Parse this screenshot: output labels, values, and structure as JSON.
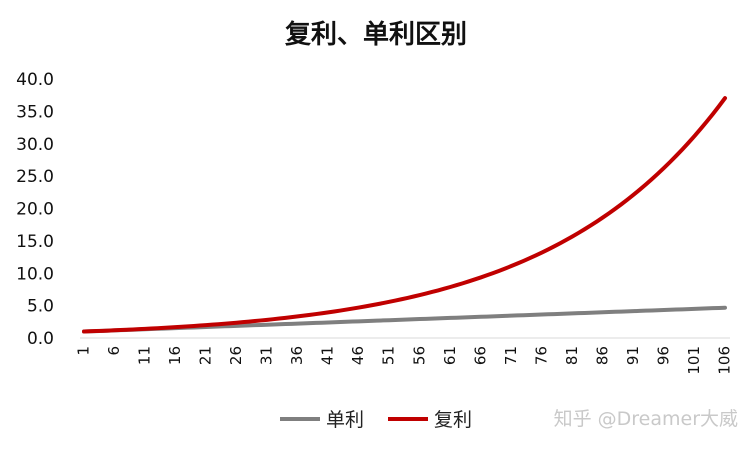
{
  "chart_data": {
    "type": "line",
    "title": "复利、单利区别",
    "xlabel": "",
    "ylabel": "",
    "ylim": [
      0,
      40
    ],
    "yticks": [
      "0.0",
      "5.0",
      "10.0",
      "15.0",
      "20.0",
      "25.0",
      "30.0",
      "35.0",
      "40.0"
    ],
    "x_range": [
      1,
      106
    ],
    "xticks": [
      "1",
      "6",
      "11",
      "16",
      "21",
      "26",
      "31",
      "36",
      "41",
      "46",
      "51",
      "56",
      "61",
      "66",
      "71",
      "76",
      "81",
      "86",
      "91",
      "96",
      "101",
      "106"
    ],
    "grid": false,
    "legend_position": "bottom",
    "series": [
      {
        "name": "单利",
        "color": "#7f7f7f",
        "rule": "y = 1 + 0.035*(x-1)",
        "start": 1.0,
        "end": 4.7
      },
      {
        "name": "复利",
        "color": "#c00000",
        "rule": "y = 1.035^(x-1)",
        "start": 1.0,
        "end": 37.0
      }
    ]
  },
  "watermark": "知乎 @Dreamer大威"
}
